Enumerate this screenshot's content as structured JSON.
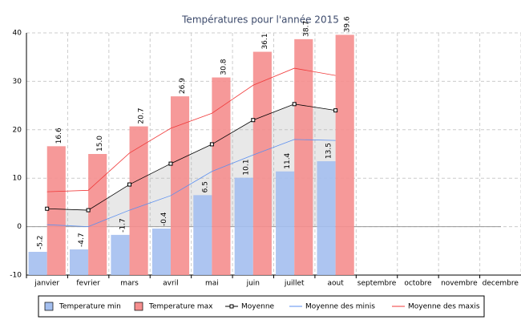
{
  "chart_data": {
    "type": "bar",
    "title": "Températures pour l'année 2015",
    "categories": [
      "janvier",
      "fevrier",
      "mars",
      "avril",
      "mai",
      "juin",
      "juillet",
      "aout",
      "septembre",
      "octobre",
      "novembre",
      "decembre"
    ],
    "series": [
      {
        "name": "Temperature min",
        "kind": "bar",
        "color": "#a4bfef",
        "values": [
          -5.2,
          -4.7,
          -1.7,
          -0.4,
          6.5,
          10.1,
          11.4,
          13.5,
          null,
          null,
          null,
          null
        ],
        "value_labels": [
          "-5.2",
          "-4.7",
          "-1.7",
          "-0.4",
          "6.5",
          "10.1",
          "11.4",
          "13.5",
          null,
          null,
          null,
          null
        ]
      },
      {
        "name": "Temperature max",
        "kind": "bar",
        "color": "#f58e8e",
        "values": [
          16.6,
          15.0,
          20.7,
          26.9,
          30.8,
          36.1,
          38.7,
          39.6,
          null,
          null,
          null,
          null
        ],
        "value_labels": [
          "16.6",
          "15.0",
          "20.7",
          "26.9",
          "30.8",
          "36.1",
          "38.7",
          "39.6",
          null,
          null,
          null,
          null
        ]
      },
      {
        "name": "Moyenne",
        "kind": "line",
        "color": "#000000",
        "marker": "square",
        "area": true,
        "values": [
          3.7,
          3.4,
          8.7,
          13.0,
          17.0,
          22.0,
          25.3,
          24.0,
          null,
          null,
          null,
          null
        ]
      },
      {
        "name": "Moyenne des minis",
        "kind": "line",
        "color": "#5b8ff0",
        "values": [
          0.4,
          0.0,
          3.4,
          6.4,
          11.4,
          14.8,
          18.0,
          17.8,
          null,
          null,
          null,
          null
        ]
      },
      {
        "name": "Moyenne des maxis",
        "kind": "line",
        "color": "#f03a3a",
        "values": [
          7.2,
          7.5,
          15.2,
          20.3,
          23.4,
          29.2,
          32.7,
          31.2,
          null,
          null,
          null,
          null
        ]
      }
    ],
    "ylim": [
      -10,
      40
    ],
    "yticks": [
      -10,
      0,
      10,
      20,
      30,
      40
    ],
    "grid": true,
    "legend": "bottom"
  }
}
